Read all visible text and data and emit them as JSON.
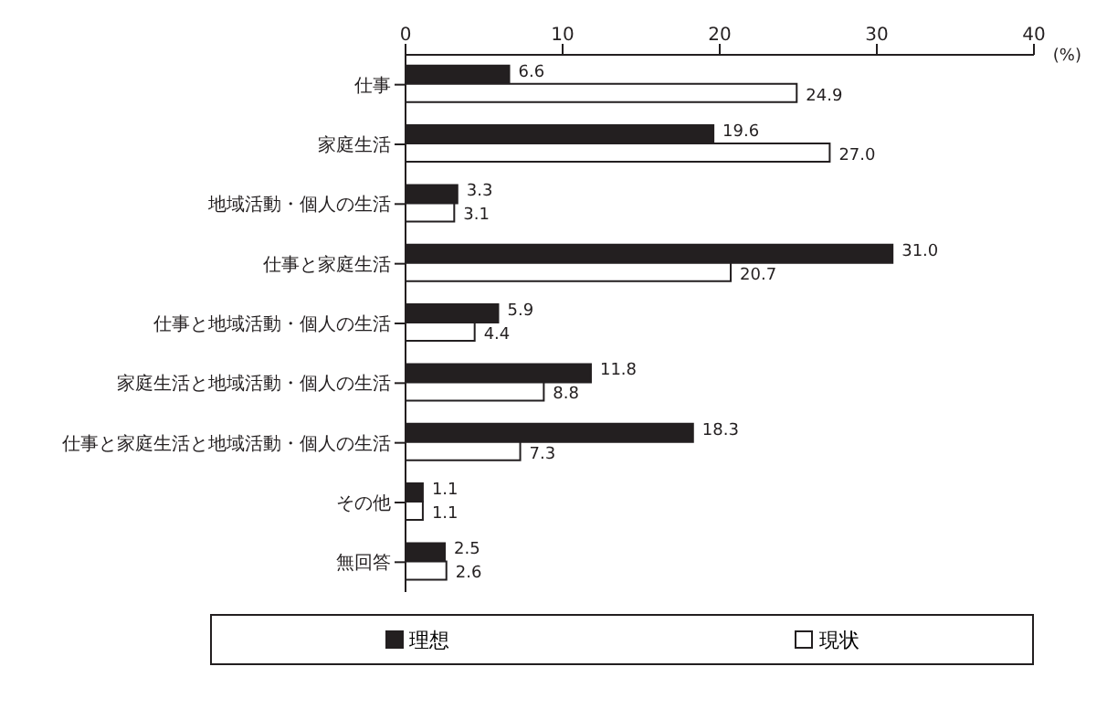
{
  "chart_data": {
    "type": "bar",
    "orientation": "horizontal",
    "xlabel": "(%)",
    "categories": [
      "仕事",
      "家庭生活",
      "地域活動・個人の生活",
      "仕事と家庭生活",
      "仕事と地域活動・個人の生活",
      "家庭生活と地域活動・個人の生活",
      "仕事と家庭生活と地域活動・個人の生活",
      "その他",
      "無回答"
    ],
    "series": [
      {
        "name": "理想",
        "color": "#231f20",
        "values": [
          6.6,
          19.6,
          3.3,
          31.0,
          5.9,
          11.8,
          18.3,
          1.1,
          2.5
        ],
        "value_labels": [
          "6.6",
          "19.6",
          "3.3",
          "31.0",
          "5.9",
          "11.8",
          "18.3",
          "1.1",
          "2.5"
        ]
      },
      {
        "name": "現状",
        "color": "#ffffff",
        "values": [
          24.9,
          27.0,
          3.1,
          20.7,
          4.4,
          8.8,
          7.3,
          1.1,
          2.6
        ],
        "value_labels": [
          "24.9",
          "27.0",
          "3.1",
          "20.7",
          "4.4",
          "8.8",
          "7.3",
          "1.1",
          "2.6"
        ]
      }
    ],
    "xlim": [
      0,
      40
    ],
    "xticks": [
      0,
      10,
      20,
      30,
      40
    ],
    "grid": false,
    "legend": "bottom"
  }
}
